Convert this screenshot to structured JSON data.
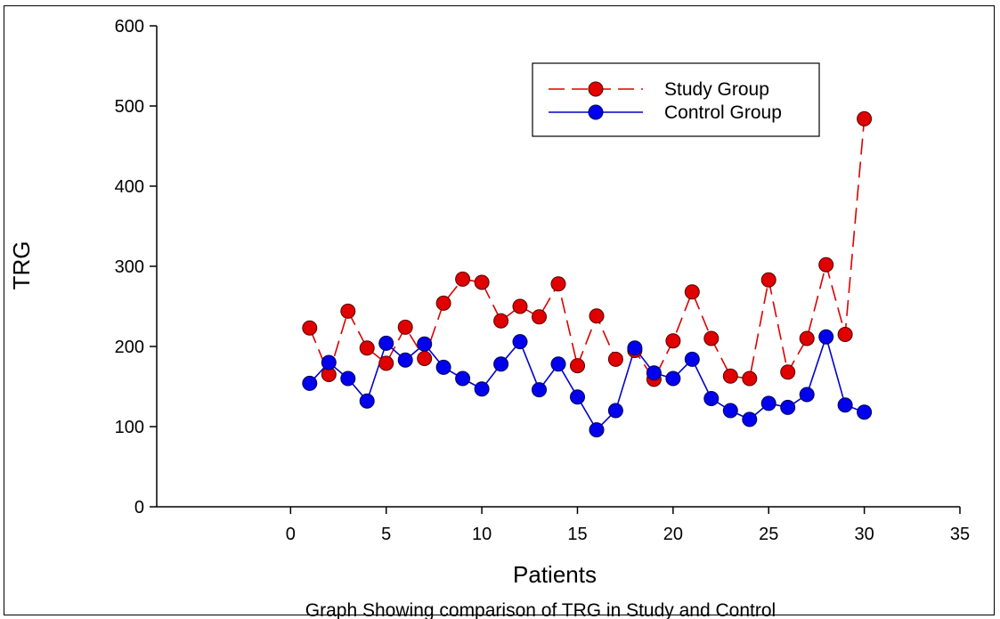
{
  "chart_data": {
    "type": "line",
    "title": "",
    "caption": "Graph Showing comparison of TRG in Study and Control",
    "xlabel": "Patients",
    "ylabel": "TRG",
    "xlim": [
      -7,
      35
    ],
    "ylim": [
      0,
      600
    ],
    "xticks": [
      0,
      5,
      10,
      15,
      20,
      25,
      30,
      35
    ],
    "yticks": [
      0,
      100,
      200,
      300,
      400,
      500,
      600
    ],
    "grid": false,
    "legend_position": "top-right",
    "x": [
      1,
      2,
      3,
      4,
      5,
      6,
      7,
      8,
      9,
      10,
      11,
      12,
      13,
      14,
      15,
      16,
      17,
      18,
      19,
      20,
      21,
      22,
      23,
      24,
      25,
      26,
      27,
      28,
      29,
      30
    ],
    "series": [
      {
        "name": "Study Group",
        "color": "#dd0000",
        "line_style": "dashed",
        "values": [
          223,
          165,
          244,
          198,
          179,
          224,
          185,
          254,
          284,
          280,
          232,
          250,
          237,
          278,
          176,
          238,
          184,
          195,
          159,
          207,
          268,
          210,
          163,
          160,
          283,
          168,
          210,
          302,
          215,
          484
        ]
      },
      {
        "name": "Control Group",
        "color": "#0000cc",
        "line_style": "solid",
        "values": [
          154,
          180,
          160,
          132,
          204,
          183,
          203,
          174,
          160,
          147,
          178,
          206,
          146,
          178,
          137,
          96,
          120,
          198,
          167,
          160,
          184,
          135,
          120,
          109,
          129,
          124,
          140,
          212,
          127,
          118
        ]
      }
    ]
  }
}
